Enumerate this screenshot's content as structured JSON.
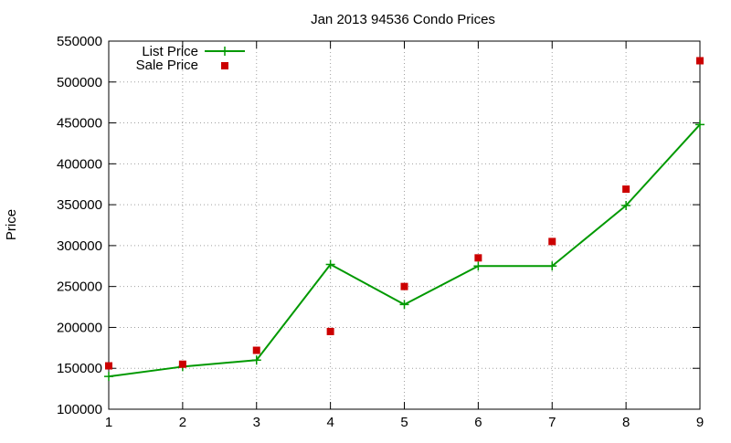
{
  "chart_data": {
    "type": "line",
    "title": "Jan 2013 94536 Condo Prices",
    "xlabel": "",
    "ylabel": "Price",
    "xlim": [
      1,
      9
    ],
    "ylim": [
      100000,
      550000
    ],
    "x_ticks": [
      1,
      2,
      3,
      4,
      5,
      6,
      7,
      8,
      9
    ],
    "y_ticks": [
      100000,
      150000,
      200000,
      250000,
      300000,
      350000,
      400000,
      450000,
      500000,
      550000
    ],
    "grid": true,
    "legend_position": "top-left",
    "x": [
      1,
      2,
      3,
      4,
      5,
      6,
      7,
      8,
      9
    ],
    "series": [
      {
        "name": "List Price",
        "style": "line with plus markers",
        "color": "#009900",
        "values": [
          140000,
          152000,
          160000,
          277000,
          228000,
          275000,
          275000,
          349000,
          448000
        ]
      },
      {
        "name": "Sale Price",
        "style": "square markers",
        "color": "#cc0000",
        "values": [
          153000,
          155000,
          172000,
          195000,
          250000,
          285000,
          305000,
          369000,
          526000
        ]
      }
    ]
  }
}
